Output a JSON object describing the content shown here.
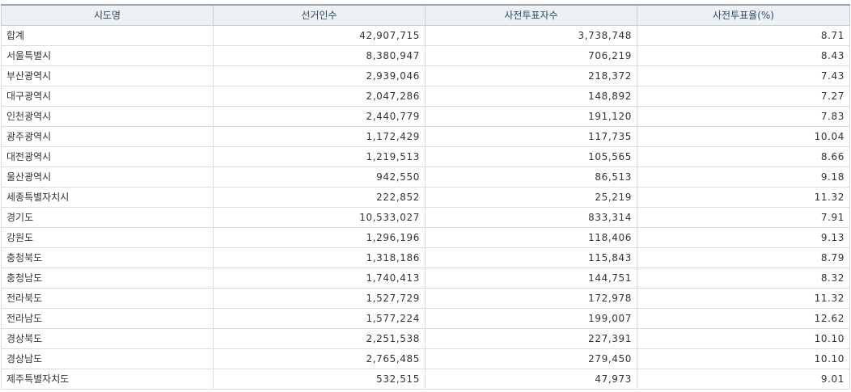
{
  "columns": [
    "시도명",
    "선거인수",
    "사전투표자수",
    "사전투표율(%)"
  ],
  "rows": [
    [
      "합계",
      "42,907,715",
      "3,738,748",
      "8.71"
    ],
    [
      "서울특별시",
      "8,380,947",
      "706,219",
      "8.43"
    ],
    [
      "부산광역시",
      "2,939,046",
      "218,372",
      "7.43"
    ],
    [
      "대구광역시",
      "2,047,286",
      "148,892",
      "7.27"
    ],
    [
      "인천광역시",
      "2,440,779",
      "191,120",
      "7.83"
    ],
    [
      "광주광역시",
      "1,172,429",
      "117,735",
      "10.04"
    ],
    [
      "대전광역시",
      "1,219,513",
      "105,565",
      "8.66"
    ],
    [
      "울산광역시",
      "942,550",
      "86,513",
      "9.18"
    ],
    [
      "세종특별자치시",
      "222,852",
      "25,219",
      "11.32"
    ],
    [
      "경기도",
      "10,533,027",
      "833,314",
      "7.91"
    ],
    [
      "강원도",
      "1,296,196",
      "118,406",
      "9.13"
    ],
    [
      "충청북도",
      "1,318,186",
      "115,843",
      "8.79"
    ],
    [
      "충청남도",
      "1,740,413",
      "144,751",
      "8.32"
    ],
    [
      "전라북도",
      "1,527,729",
      "172,978",
      "11.32"
    ],
    [
      "전라남도",
      "1,577,224",
      "199,007",
      "12.62"
    ],
    [
      "경상북도",
      "2,251,538",
      "227,391",
      "10.10"
    ],
    [
      "경상남도",
      "2,765,485",
      "279,450",
      "10.10"
    ],
    [
      "제주특별자치도",
      "532,515",
      "47,973",
      "9.01"
    ]
  ]
}
